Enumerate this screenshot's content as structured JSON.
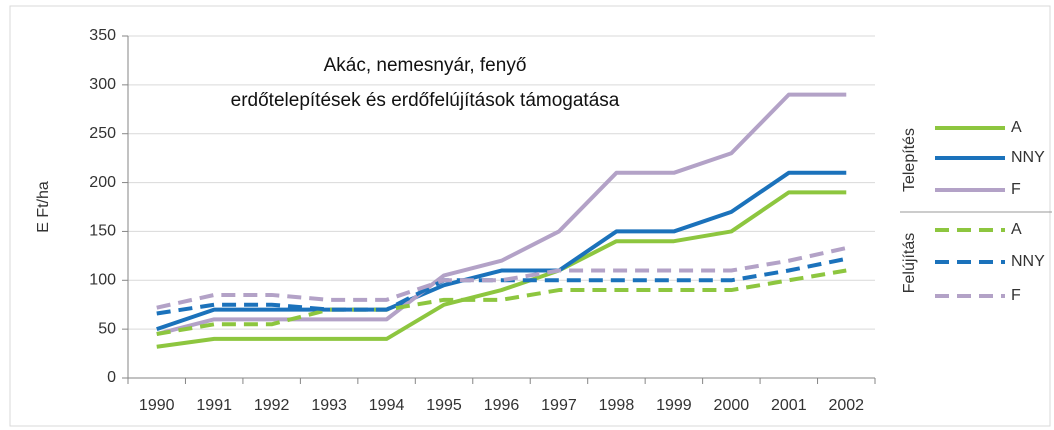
{
  "chart_data": {
    "type": "line",
    "title": [
      "Akác, nemesnyár, fenyő",
      "erdőtelepítések és erdőfelújítások támogatása"
    ],
    "y_label": "E Ft/ha",
    "categories": [
      "1990",
      "1991",
      "1992",
      "1993",
      "1994",
      "1995",
      "1996",
      "1997",
      "1998",
      "1999",
      "2000",
      "2001",
      "2002"
    ],
    "ylim": [
      0,
      350
    ],
    "yticks": [
      0,
      50,
      100,
      150,
      200,
      250,
      300,
      350
    ],
    "grid": true,
    "legend_groups": [
      "Telepítés",
      "Felújítás"
    ],
    "series": [
      {
        "name": "A",
        "color": "#8dc63f",
        "dashed": false,
        "values": [
          32,
          40,
          40,
          40,
          40,
          75,
          90,
          110,
          140,
          140,
          150,
          190,
          190
        ]
      },
      {
        "name": "NNY",
        "color": "#1b72bb",
        "dashed": false,
        "values": [
          50,
          70,
          70,
          70,
          70,
          95,
          110,
          110,
          150,
          150,
          170,
          210,
          210
        ]
      },
      {
        "name": "F",
        "color": "#b3a2c7",
        "dashed": false,
        "values": [
          45,
          60,
          60,
          60,
          60,
          105,
          120,
          150,
          210,
          210,
          230,
          290,
          290
        ]
      },
      {
        "name": "A",
        "color": "#8dc63f",
        "dashed": true,
        "values": [
          45,
          55,
          55,
          70,
          70,
          80,
          80,
          90,
          90,
          90,
          90,
          100,
          110
        ]
      },
      {
        "name": "NNY",
        "color": "#1b72bb",
        "dashed": true,
        "values": [
          66,
          75,
          75,
          70,
          70,
          100,
          100,
          100,
          100,
          100,
          100,
          110,
          122
        ]
      },
      {
        "name": "F",
        "color": "#b3a2c7",
        "dashed": true,
        "values": [
          72,
          85,
          85,
          80,
          80,
          100,
          100,
          110,
          110,
          110,
          110,
          120,
          133
        ]
      }
    ]
  }
}
